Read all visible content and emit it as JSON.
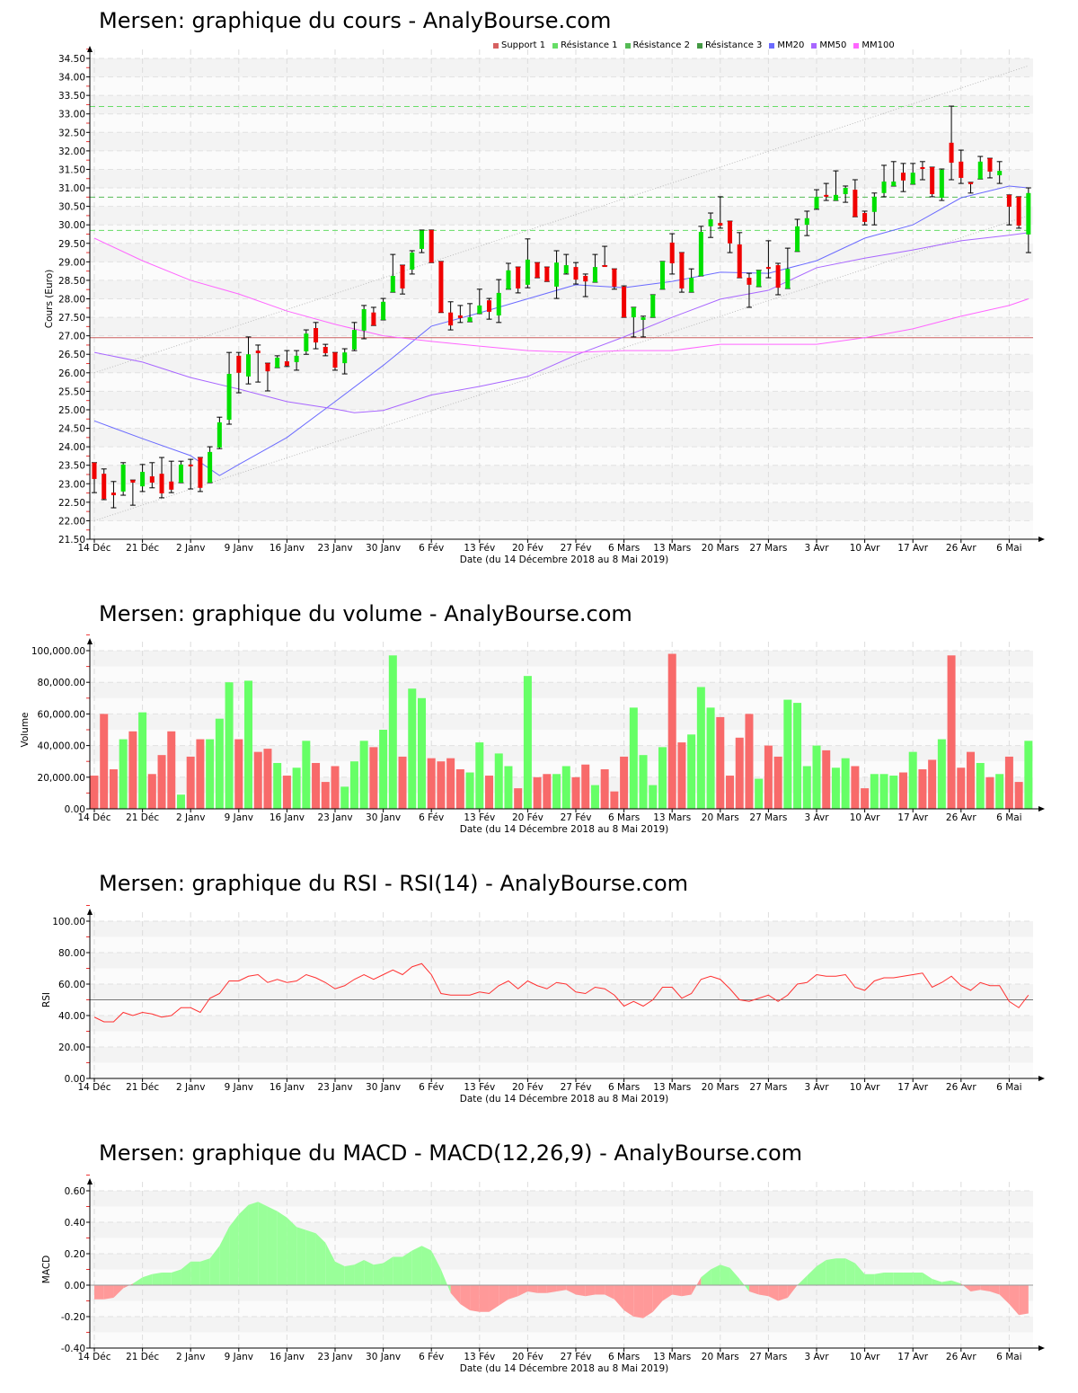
{
  "colors": {
    "up": "#00e000",
    "down": "#f00000",
    "vol_up": "#66ff66",
    "vol_down": "#f86a6a",
    "support": "#c96060",
    "res1": "#66dd66",
    "res2": "#55bb55",
    "res3": "#449944",
    "mm20": "#6b6bff",
    "mm50": "#a866ff",
    "mm100": "#ff66ff",
    "rsi": "#ff3030",
    "macd_pos": "#99ff99",
    "macd_neg": "#ff9999"
  },
  "x_ticks": [
    "14 Déc",
    "21 Déc",
    "2 Janv",
    "9 Janv",
    "16 Janv",
    "23 Janv",
    "30 Janv",
    "6 Fév",
    "13 Fév",
    "20 Fév",
    "27 Fév",
    "6 Mars",
    "13 Mars",
    "20 Mars",
    "27 Mars",
    "3 Avr",
    "10 Avr",
    "17 Avr",
    "26 Avr",
    "6 Mai"
  ],
  "x_label": "Date (du 14 Décembre 2018 au 8 Mai 2019)",
  "legend": [
    {
      "label": "Support 1",
      "color": "#d66060"
    },
    {
      "label": "Résistance 1",
      "color": "#66dd66"
    },
    {
      "label": "Résistance 2",
      "color": "#55bb55"
    },
    {
      "label": "Résistance 3",
      "color": "#449944"
    },
    {
      "label": "MM20",
      "color": "#6b6bff"
    },
    {
      "label": "MM50",
      "color": "#a866ff"
    },
    {
      "label": "MM100",
      "color": "#ff66ff"
    }
  ],
  "chart_data": [
    {
      "type": "candlestick",
      "title": "Mersen: graphique du cours - AnalyBourse.com",
      "ylabel": "Cours (Euro)",
      "ylim": [
        21.5,
        34.5
      ],
      "y_ticks": [
        "21.50",
        "22.00",
        "22.50",
        "23.00",
        "23.50",
        "24.00",
        "24.50",
        "25.00",
        "25.50",
        "26.00",
        "26.50",
        "27.00",
        "27.50",
        "28.00",
        "28.50",
        "29.00",
        "29.50",
        "30.00",
        "30.50",
        "31.00",
        "31.50",
        "32.00",
        "32.50",
        "33.00",
        "33.50",
        "34.00",
        "34.50"
      ],
      "levels": {
        "support1": 26.95,
        "resistance1": 29.85,
        "resistance2": 30.75,
        "resistance3": 33.2
      },
      "channel": {
        "upper": [
          [
            0,
            26.0
          ],
          [
            97,
            34.3
          ]
        ],
        "lower": [
          [
            0,
            22.0
          ],
          [
            97,
            30.25
          ]
        ]
      },
      "ohlc": [
        [
          23.57,
          23.57,
          22.76,
          23.13
        ],
        [
          23.27,
          23.4,
          22.57,
          22.59
        ],
        [
          22.76,
          23.06,
          22.35,
          22.69
        ],
        [
          22.79,
          23.57,
          22.69,
          23.52
        ],
        [
          23.1,
          23.1,
          22.42,
          23.03
        ],
        [
          22.93,
          23.52,
          22.79,
          23.32
        ],
        [
          23.2,
          23.57,
          22.89,
          23.03
        ],
        [
          23.27,
          23.71,
          22.62,
          22.74
        ],
        [
          23.06,
          23.61,
          22.76,
          22.84
        ],
        [
          23.03,
          23.61,
          23.03,
          23.52
        ],
        [
          23.52,
          23.66,
          22.86,
          23.47
        ],
        [
          23.71,
          23.71,
          22.79,
          22.89
        ],
        [
          23.03,
          24.0,
          23.03,
          23.86
        ],
        [
          23.98,
          24.8,
          23.95,
          24.66
        ],
        [
          24.73,
          26.55,
          24.61,
          25.97
        ],
        [
          26.46,
          26.55,
          25.46,
          26.0
        ],
        [
          25.9,
          26.97,
          25.7,
          26.5
        ],
        [
          26.6,
          26.75,
          25.75,
          26.53
        ],
        [
          26.26,
          26.26,
          25.51,
          26.04
        ],
        [
          26.14,
          26.46,
          26.14,
          26.41
        ],
        [
          26.31,
          26.6,
          26.17,
          26.19
        ],
        [
          26.29,
          26.6,
          26.07,
          26.46
        ],
        [
          26.58,
          27.16,
          26.5,
          27.06
        ],
        [
          27.21,
          27.36,
          26.65,
          26.82
        ],
        [
          26.7,
          26.77,
          26.46,
          26.53
        ],
        [
          26.55,
          26.55,
          26.07,
          26.14
        ],
        [
          26.26,
          26.65,
          25.97,
          26.55
        ],
        [
          26.63,
          27.36,
          26.6,
          27.16
        ],
        [
          27.14,
          27.82,
          26.92,
          27.72
        ],
        [
          27.63,
          27.77,
          27.28,
          27.28
        ],
        [
          27.43,
          28.01,
          27.43,
          27.92
        ],
        [
          28.18,
          29.2,
          28.18,
          28.62
        ],
        [
          28.91,
          28.91,
          28.13,
          28.28
        ],
        [
          28.79,
          29.3,
          28.67,
          29.25
        ],
        [
          29.35,
          29.86,
          29.25,
          29.85
        ],
        [
          29.86,
          29.86,
          28.98,
          28.98
        ],
        [
          29.01,
          29.01,
          27.63,
          27.63
        ],
        [
          27.63,
          27.92,
          27.16,
          27.28
        ],
        [
          27.55,
          27.82,
          27.36,
          27.48
        ],
        [
          27.38,
          27.87,
          27.38,
          27.5
        ],
        [
          27.6,
          28.26,
          27.6,
          27.82
        ],
        [
          27.96,
          28.01,
          27.45,
          27.65
        ],
        [
          27.55,
          28.52,
          27.36,
          28.16
        ],
        [
          28.26,
          28.96,
          28.26,
          28.77
        ],
        [
          28.86,
          28.86,
          28.16,
          28.28
        ],
        [
          28.38,
          29.62,
          28.3,
          29.06
        ],
        [
          28.98,
          28.98,
          28.57,
          28.57
        ],
        [
          28.86,
          28.86,
          28.47,
          28.47
        ],
        [
          28.33,
          29.3,
          28.01,
          28.98
        ],
        [
          28.69,
          29.2,
          28.67,
          28.91
        ],
        [
          28.86,
          28.98,
          28.4,
          28.52
        ],
        [
          28.62,
          28.67,
          28.06,
          28.47
        ],
        [
          28.45,
          29.2,
          28.45,
          28.86
        ],
        [
          28.91,
          29.42,
          28.89,
          28.89
        ],
        [
          28.81,
          28.81,
          28.26,
          28.33
        ],
        [
          28.33,
          28.35,
          27.5,
          27.5
        ],
        [
          27.5,
          27.77,
          26.97,
          27.77
        ],
        [
          27.43,
          27.53,
          26.97,
          27.5
        ],
        [
          27.5,
          28.11,
          27.5,
          28.11
        ],
        [
          28.26,
          29.01,
          28.26,
          29.01
        ],
        [
          29.52,
          29.76,
          28.67,
          28.96
        ],
        [
          29.25,
          29.25,
          28.18,
          28.28
        ],
        [
          28.18,
          28.81,
          28.18,
          28.57
        ],
        [
          28.62,
          29.96,
          28.62,
          29.81
        ],
        [
          29.96,
          30.32,
          29.66,
          30.15
        ],
        [
          30.05,
          30.76,
          29.91,
          29.98
        ],
        [
          30.1,
          30.1,
          29.25,
          29.5
        ],
        [
          29.47,
          29.79,
          28.57,
          28.57
        ],
        [
          28.57,
          28.69,
          27.77,
          28.38
        ],
        [
          28.33,
          28.77,
          28.33,
          28.77
        ],
        [
          28.86,
          29.57,
          28.57,
          28.81
        ],
        [
          28.91,
          28.96,
          28.11,
          28.3
        ],
        [
          28.28,
          29.37,
          28.28,
          28.81
        ],
        [
          29.28,
          30.15,
          29.28,
          29.96
        ],
        [
          30.0,
          30.37,
          29.71,
          30.18
        ],
        [
          30.44,
          30.95,
          30.42,
          30.76
        ],
        [
          30.81,
          31.12,
          30.66,
          30.76
        ],
        [
          30.66,
          31.46,
          30.66,
          30.81
        ],
        [
          30.83,
          31.05,
          30.61,
          31.0
        ],
        [
          30.95,
          31.22,
          30.22,
          30.22
        ],
        [
          30.32,
          30.37,
          30.0,
          30.08
        ],
        [
          30.35,
          30.86,
          30.0,
          30.76
        ],
        [
          30.86,
          31.61,
          30.76,
          31.17
        ],
        [
          31.05,
          31.71,
          31.05,
          31.17
        ],
        [
          31.41,
          31.66,
          30.9,
          31.2
        ],
        [
          31.1,
          31.66,
          31.1,
          31.41
        ],
        [
          31.56,
          31.71,
          31.22,
          31.51
        ],
        [
          31.56,
          31.56,
          30.76,
          30.83
        ],
        [
          30.73,
          31.51,
          30.66,
          31.49
        ],
        [
          32.22,
          33.21,
          31.22,
          31.68
        ],
        [
          31.71,
          32.02,
          31.12,
          31.27
        ],
        [
          31.15,
          31.15,
          30.86,
          31.1
        ],
        [
          31.24,
          31.85,
          31.24,
          31.71
        ],
        [
          31.8,
          31.8,
          31.27,
          31.44
        ],
        [
          31.34,
          31.71,
          31.12,
          31.46
        ],
        [
          30.81,
          30.81,
          30.0,
          30.49
        ],
        [
          30.76,
          30.76,
          29.91,
          29.98
        ],
        [
          29.74,
          31.0,
          29.25,
          30.86
        ]
      ],
      "moving_averages": {
        "MM20": [
          [
            0,
            24.7
          ],
          [
            5,
            24.22
          ],
          [
            10,
            23.76
          ],
          [
            13,
            23.22
          ],
          [
            15,
            23.52
          ],
          [
            20,
            24.25
          ],
          [
            25,
            25.22
          ],
          [
            30,
            26.2
          ],
          [
            35,
            27.26
          ],
          [
            40,
            27.62
          ],
          [
            45,
            28.0
          ],
          [
            50,
            28.38
          ],
          [
            55,
            28.3
          ],
          [
            60,
            28.47
          ],
          [
            65,
            28.72
          ],
          [
            70,
            28.69
          ],
          [
            75,
            29.03
          ],
          [
            80,
            29.64
          ],
          [
            85,
            30.0
          ],
          [
            90,
            30.73
          ],
          [
            95,
            31.05
          ],
          [
            97,
            31.0
          ]
        ],
        "MM50": [
          [
            0,
            26.55
          ],
          [
            5,
            26.29
          ],
          [
            10,
            25.87
          ],
          [
            15,
            25.56
          ],
          [
            20,
            25.22
          ],
          [
            25,
            25.02
          ],
          [
            27,
            24.92
          ],
          [
            30,
            24.98
          ],
          [
            35,
            25.4
          ],
          [
            40,
            25.63
          ],
          [
            45,
            25.9
          ],
          [
            50,
            26.48
          ],
          [
            55,
            26.97
          ],
          [
            60,
            27.5
          ],
          [
            65,
            27.99
          ],
          [
            70,
            28.23
          ],
          [
            75,
            28.84
          ],
          [
            80,
            29.1
          ],
          [
            85,
            29.32
          ],
          [
            90,
            29.57
          ],
          [
            95,
            29.72
          ],
          [
            97,
            29.79
          ]
        ],
        "MM100": [
          [
            0,
            29.64
          ],
          [
            5,
            29.03
          ],
          [
            10,
            28.5
          ],
          [
            15,
            28.13
          ],
          [
            20,
            27.67
          ],
          [
            25,
            27.31
          ],
          [
            30,
            27.0
          ],
          [
            35,
            26.85
          ],
          [
            40,
            26.72
          ],
          [
            45,
            26.6
          ],
          [
            50,
            26.55
          ],
          [
            55,
            26.6
          ],
          [
            60,
            26.6
          ],
          [
            65,
            26.77
          ],
          [
            70,
            26.77
          ],
          [
            75,
            26.77
          ],
          [
            80,
            26.95
          ],
          [
            85,
            27.19
          ],
          [
            90,
            27.53
          ],
          [
            95,
            27.82
          ],
          [
            97,
            28.0
          ]
        ]
      }
    },
    {
      "type": "bar",
      "title": "Mersen: graphique du volume - AnalyBourse.com",
      "ylabel": "Volume",
      "ylim": [
        0,
        100000
      ],
      "y_ticks": [
        "0.00",
        "20,000.00",
        "40,000.00",
        "60,000.00",
        "80,000.00",
        "100,000.00"
      ],
      "values": [
        21000,
        60000,
        25000,
        44000,
        49000,
        61000,
        22000,
        34000,
        49000,
        9000,
        33000,
        44000,
        44000,
        57000,
        80000,
        44000,
        81000,
        36000,
        38000,
        29000,
        21000,
        26000,
        43000,
        29000,
        17000,
        27000,
        14000,
        30000,
        43000,
        39000,
        50000,
        97000,
        33000,
        76000,
        70000,
        32000,
        30000,
        32000,
        25000,
        23000,
        42000,
        21000,
        35000,
        27000,
        13000,
        84000,
        20000,
        22000,
        22000,
        27000,
        20000,
        28000,
        15000,
        25000,
        11000,
        33000,
        64000,
        34000,
        15000,
        39000,
        98000,
        42000,
        47000,
        77000,
        64000,
        58000,
        21000,
        45000,
        60000,
        19000,
        40000,
        33000,
        69000,
        67000,
        27000,
        40000,
        37000,
        26000,
        32000,
        27000,
        13000,
        22000,
        22000,
        21000,
        23000,
        36000,
        25000,
        31000,
        44000,
        97000,
        26000,
        36000,
        29000,
        20000,
        22000,
        33000,
        17000,
        43000
      ]
    },
    {
      "type": "line",
      "title": "Mersen: graphique du RSI - RSI(14) - AnalyBourse.com",
      "ylabel": "RSI",
      "ylim": [
        0,
        100
      ],
      "reference": 50,
      "y_ticks": [
        "0.00",
        "20.00",
        "40.00",
        "60.00",
        "80.00",
        "100.00"
      ],
      "values": [
        39,
        36,
        36,
        42,
        40,
        42,
        41,
        39,
        40,
        45,
        45,
        42,
        51,
        54,
        62,
        62,
        65,
        66,
        61,
        63,
        61,
        62,
        66,
        64,
        61,
        57,
        59,
        63,
        66,
        63,
        66,
        69,
        66,
        71,
        73,
        66,
        54,
        53,
        53,
        53,
        55,
        54,
        59,
        62,
        57,
        62,
        59,
        57,
        61,
        60,
        55,
        54,
        58,
        57,
        53,
        46,
        49,
        46,
        50,
        58,
        58,
        51,
        54,
        63,
        65,
        63,
        57,
        50,
        49,
        51,
        53,
        49,
        53,
        60,
        61,
        66,
        65,
        65,
        66,
        58,
        56,
        62,
        64,
        64,
        65,
        66,
        67,
        58,
        61,
        65,
        59,
        56,
        61,
        59,
        59,
        49,
        45,
        53
      ]
    },
    {
      "type": "area",
      "title": "Mersen: graphique du MACD - MACD(12,26,9) - AnalyBourse.com",
      "ylabel": "MACD",
      "ylim": [
        -0.4,
        0.6
      ],
      "y_ticks": [
        "-0.40",
        "-0.20",
        "0.00",
        "0.20",
        "0.40",
        "0.60"
      ],
      "values": [
        -0.09,
        -0.09,
        -0.08,
        -0.02,
        0.01,
        0.05,
        0.07,
        0.08,
        0.08,
        0.1,
        0.15,
        0.15,
        0.17,
        0.25,
        0.37,
        0.45,
        0.51,
        0.53,
        0.5,
        0.47,
        0.43,
        0.37,
        0.35,
        0.33,
        0.27,
        0.15,
        0.12,
        0.13,
        0.16,
        0.13,
        0.14,
        0.18,
        0.18,
        0.22,
        0.25,
        0.22,
        0.1,
        -0.05,
        -0.12,
        -0.16,
        -0.17,
        -0.17,
        -0.13,
        -0.09,
        -0.07,
        -0.04,
        -0.05,
        -0.05,
        -0.04,
        -0.03,
        -0.06,
        -0.07,
        -0.06,
        -0.06,
        -0.09,
        -0.16,
        -0.2,
        -0.21,
        -0.17,
        -0.1,
        -0.06,
        -0.07,
        -0.06,
        0.05,
        0.1,
        0.13,
        0.11,
        0.04,
        -0.04,
        -0.06,
        -0.07,
        -0.1,
        -0.08,
        0.0,
        0.06,
        0.12,
        0.16,
        0.17,
        0.17,
        0.14,
        0.07,
        0.07,
        0.08,
        0.08,
        0.08,
        0.08,
        0.08,
        0.04,
        0.02,
        0.03,
        0.01,
        -0.04,
        -0.03,
        -0.04,
        -0.06,
        -0.12,
        -0.19,
        -0.18
      ]
    }
  ]
}
